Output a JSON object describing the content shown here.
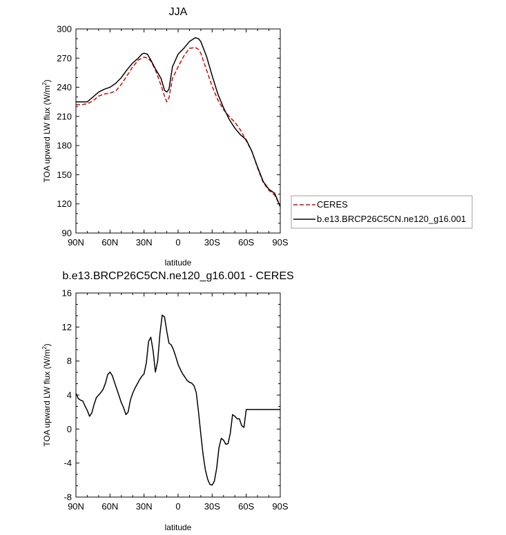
{
  "chart_data": [
    {
      "type": "line",
      "title": "JJA",
      "xlabel": "latitude",
      "ylabel": "TOA upward LW flux (W/m²)",
      "ylabel_base": "TOA upward LW flux (W/m",
      "ylabel_sup": "2",
      "ylabel_close": ")",
      "xlim": [
        90,
        -90
      ],
      "ylim": [
        90,
        300
      ],
      "xticks": [
        90,
        60,
        30,
        0,
        -30,
        -60,
        -90
      ],
      "xtick_labels": [
        "90N",
        "60N",
        "30N",
        "0",
        "30S",
        "60S",
        "90S"
      ],
      "yticks": [
        90,
        120,
        150,
        180,
        210,
        240,
        270,
        300
      ],
      "ytick_labels": [
        "90",
        "120",
        "150",
        "180",
        "210",
        "240",
        "270",
        "300"
      ],
      "legend": [
        "CERES",
        "b.e13.BRCP26C5CN.ne120_g16.001"
      ],
      "series": [
        {
          "name": "CERES",
          "color": "#dd0000",
          "style": "dashed",
          "x": [
            90,
            85,
            80,
            75,
            70,
            65,
            60,
            55,
            50,
            45,
            40,
            35,
            30,
            27,
            24,
            20,
            15,
            12,
            10,
            8,
            5,
            0,
            -5,
            -10,
            -15,
            -18,
            -20,
            -25,
            -30,
            -35,
            -40,
            -45,
            -50,
            -55,
            -60,
            -65,
            -70,
            -75,
            -80,
            -85,
            -90
          ],
          "y": [
            222,
            222,
            223,
            226,
            231,
            233,
            234,
            236,
            243,
            252,
            261,
            268,
            271,
            270,
            267,
            258,
            242,
            231,
            225,
            229,
            249,
            261,
            272,
            280,
            281,
            279,
            275,
            258,
            241,
            227,
            217,
            210,
            204,
            196,
            185,
            174,
            157,
            142,
            134,
            129,
            118
          ]
        },
        {
          "name": "b.e13.BRCP26C5CN.ne120_g16.001",
          "color": "#000000",
          "style": "solid",
          "x": [
            90,
            85,
            80,
            75,
            70,
            65,
            60,
            55,
            50,
            45,
            40,
            35,
            32,
            30,
            27,
            24,
            20,
            15,
            12,
            10,
            8,
            5,
            0,
            -5,
            -10,
            -15,
            -18,
            -20,
            -25,
            -30,
            -35,
            -40,
            -45,
            -50,
            -55,
            -60,
            -65,
            -70,
            -75,
            -80,
            -85,
            -90
          ],
          "y": [
            225,
            225,
            225,
            230,
            235,
            238,
            240,
            244,
            250,
            258,
            265,
            270,
            274,
            275,
            274,
            268,
            259,
            249,
            237,
            235,
            238,
            261,
            274,
            280,
            287,
            291,
            290,
            287,
            272,
            252,
            233,
            219,
            207,
            198,
            191,
            186,
            174,
            158,
            143,
            135,
            131,
            117
          ]
        }
      ]
    },
    {
      "type": "line",
      "title": "b.e13.BRCP26C5CN.ne120_g16.001 - CERES",
      "xlabel": "latitude",
      "ylabel": "TOA upward LW flux (W/m²)",
      "ylabel_base": "TOA upward LW flux (W/m",
      "ylabel_sup": "2",
      "ylabel_close": ")",
      "xlim": [
        90,
        -90
      ],
      "ylim": [
        -8,
        16
      ],
      "xticks": [
        90,
        60,
        30,
        0,
        -30,
        -60,
        -90
      ],
      "xtick_labels": [
        "90N",
        "60N",
        "30N",
        "0",
        "30S",
        "60S",
        "90S"
      ],
      "yticks": [
        -8,
        -4,
        0,
        4,
        8,
        12,
        16
      ],
      "ytick_labels": [
        "-8",
        "-4",
        "0",
        "4",
        "8",
        "12",
        "16"
      ],
      "series": [
        {
          "name": "b.e13.BRCP26C5CN.ne120_g16.001 - CERES",
          "color": "#000000",
          "style": "solid",
          "x": [
            90,
            88,
            86,
            84,
            82,
            80,
            78,
            76,
            74,
            72,
            70,
            68,
            66,
            64,
            62,
            60,
            58,
            56,
            54,
            52,
            50,
            48,
            46,
            44,
            42,
            40,
            38,
            36,
            34,
            32,
            30,
            28,
            26,
            24,
            22,
            20,
            18,
            16,
            14,
            12,
            10,
            8,
            6,
            4,
            2,
            0,
            -2,
            -4,
            -6,
            -8,
            -10,
            -12,
            -14,
            -16,
            -18,
            -20,
            -22,
            -24,
            -26,
            -28,
            -30,
            -32,
            -34,
            -36,
            -38,
            -40,
            -42,
            -44,
            -46,
            -48,
            -50,
            -52,
            -54,
            -56,
            -58,
            -60,
            -62,
            -64,
            -66,
            -68,
            -70,
            -72,
            -74,
            -76,
            -78,
            -80,
            -82,
            -84,
            -86,
            -88,
            -90
          ],
          "y": [
            4.2,
            3.6,
            3.4,
            3.3,
            2.7,
            2.2,
            1.5,
            1.9,
            2.9,
            3.7,
            4.0,
            4.3,
            4.7,
            5.4,
            6.4,
            6.7,
            6.3,
            5.5,
            4.7,
            3.9,
            3.1,
            2.5,
            1.7,
            2.0,
            3.4,
            4.2,
            4.8,
            5.3,
            5.8,
            6.2,
            6.5,
            7.8,
            10.3,
            10.8,
            9.2,
            6.7,
            8.0,
            11.2,
            13.4,
            13.2,
            11.5,
            10.1,
            9.9,
            9.3,
            8.5,
            7.6,
            7.0,
            6.5,
            6.1,
            5.7,
            5.5,
            5.4,
            5.1,
            4.3,
            2.0,
            -0.6,
            -3.0,
            -4.8,
            -5.9,
            -6.5,
            -6.6,
            -6.1,
            -4.6,
            -2.2,
            -1.1,
            -1.3,
            -1.8,
            -1.7,
            -0.5,
            1.7,
            1.5,
            1.2,
            1.2,
            0.4,
            0.2,
            2.3,
            2.3,
            2.3,
            2.3,
            2.3,
            2.3,
            2.3,
            2.3,
            2.3,
            2.3,
            2.3,
            2.3,
            2.3,
            2.3,
            2.3,
            2.3
          ]
        }
      ]
    }
  ]
}
